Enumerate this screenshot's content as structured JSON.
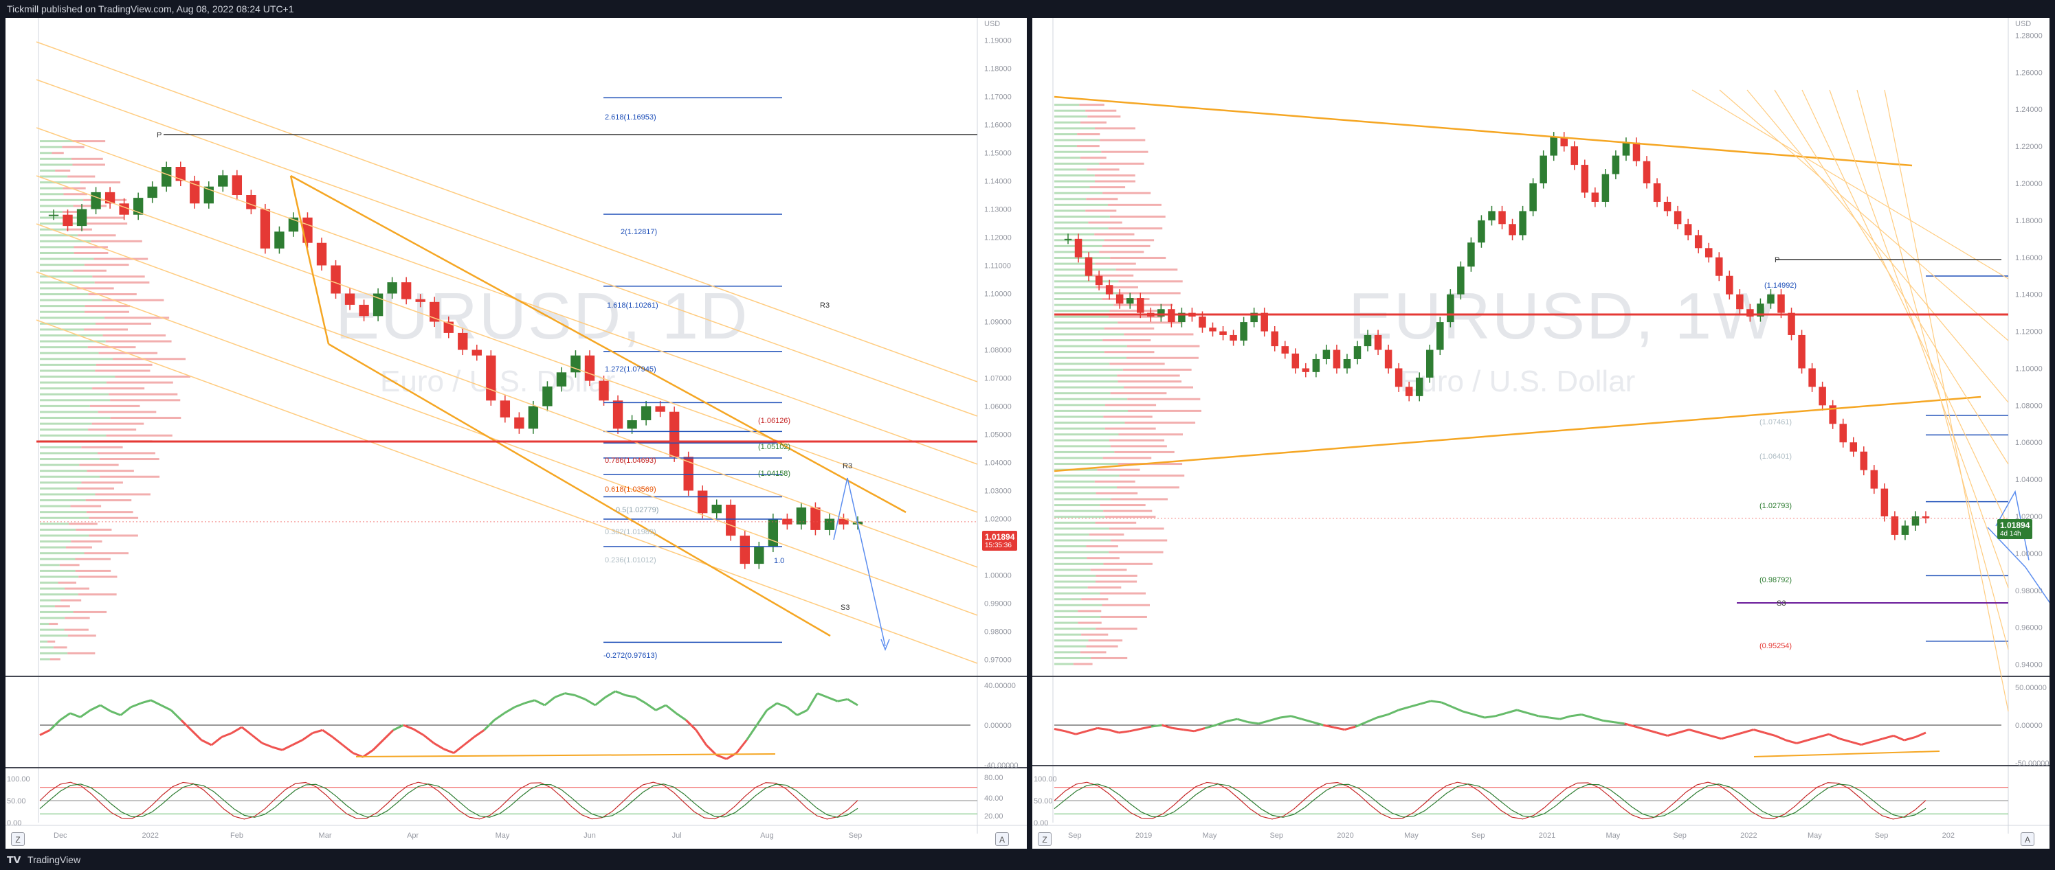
{
  "header": {
    "published_text": "Tickmill published on TradingView.com, Aug 08, 2022 08:24 UTC+1"
  },
  "footer": {
    "logo_text": "TradingView"
  },
  "colors": {
    "up": "#2e7d32",
    "down": "#e53935",
    "orange": "#f5a623",
    "blue": "#1e4fb8",
    "rsi_up": "#66bb6a",
    "rsi_down": "#ef5350"
  },
  "left_chart": {
    "watermark_ticker": "EURUSD, 1D",
    "watermark_desc": "Euro / U.S. Dollar",
    "currency_label": "USD",
    "price_tag": "1.01894",
    "price_tag_sub": "15:35:36",
    "price_axis": [
      "1.19000",
      "1.18000",
      "1.17000",
      "1.16000",
      "1.15000",
      "1.14000",
      "1.13000",
      "1.12000",
      "1.11000",
      "1.10000",
      "1.09000",
      "1.08000",
      "1.07000",
      "1.06000",
      "1.05000",
      "1.04000",
      "1.03000",
      "1.02000",
      "1.01000",
      "1.00000",
      "0.99000",
      "0.98000",
      "0.97000"
    ],
    "time_axis": [
      "Dec",
      "2022",
      "Feb",
      "Mar",
      "Apr",
      "May",
      "Jun",
      "Jul",
      "Aug",
      "Sep"
    ],
    "rsi_axis": [
      "40.00000",
      "0.00000",
      "-40.00000"
    ],
    "stoch_axis": [
      "100.00",
      "50.00",
      "0.00"
    ],
    "stoch_right_axis": [
      "80.00",
      "40.00",
      "20.00"
    ],
    "level_labels": {
      "p": "P",
      "r3": "R3",
      "r3b": "R3",
      "s3": "S3",
      "fib_2618": "2.618(1.16953)",
      "fib_2": "2(1.12817)",
      "fib_1618": "1.618(1.10261)",
      "fib_1272": "1.272(1.07945)",
      "fib_786": "0.786(1.04693)",
      "fib_618": "0.618(1.03569)",
      "fib_5": "0.5(1.02779)",
      "fib_382": "0.382(1.01989)",
      "fib_236": "0.236(1.01012)",
      "fib_neg272": "-0.272(0.97613)",
      "lvl_1": "(1.06126)",
      "lvl_2": "(1.05102)",
      "lvl_3": "(1.04158)",
      "lvl_4": "1.0"
    },
    "corner_left": "Z",
    "corner_right": "A"
  },
  "right_chart": {
    "watermark_ticker": "EURUSD, 1W",
    "watermark_desc": "Euro / U.S. Dollar",
    "currency_label": "USD",
    "price_tag": "1.01894",
    "price_tag_sub": "4d 14h",
    "price_axis": [
      "1.28000",
      "1.26000",
      "1.24000",
      "1.22000",
      "1.20000",
      "1.18000",
      "1.16000",
      "1.14000",
      "1.12000",
      "1.10000",
      "1.08000",
      "1.06000",
      "1.04000",
      "1.02000",
      "1.00000",
      "0.98000",
      "0.96000",
      "0.94000"
    ],
    "time_axis": [
      "Sep",
      "2019",
      "May",
      "Sep",
      "2020",
      "May",
      "Sep",
      "2021",
      "May",
      "Sep",
      "2022",
      "May",
      "Sep",
      "202"
    ],
    "rsi_axis": [
      "50.00000",
      "0.00000",
      "-50.00000"
    ],
    "stoch_axis": [
      "100.00",
      "50.00",
      "0.00"
    ],
    "level_labels": {
      "p": "P",
      "s3": "S3",
      "lvl_14992": "(1.14992)",
      "lvl_07461": "(1.07461)",
      "lvl_06401": "(1.06401)",
      "lvl_02793": "(1.02793)",
      "lvl_98792": "(0.98792)",
      "lvl_95254": "(0.95254)"
    },
    "corner_left": "Z",
    "corner_right": "A"
  },
  "chart_data": [
    {
      "type": "candlestick",
      "title": "EURUSD, 1D",
      "subtitle": "Euro / U.S. Dollar",
      "ylabel": "USD",
      "ylim": [
        0.965,
        1.195
      ],
      "x": [
        "Dec",
        "2022",
        "Feb",
        "Mar",
        "Apr",
        "May",
        "Jun",
        "Jul",
        "Aug",
        "Sep"
      ],
      "close_path": [
        1.128,
        1.124,
        1.13,
        1.136,
        1.132,
        1.128,
        1.134,
        1.138,
        1.145,
        1.14,
        1.132,
        1.138,
        1.142,
        1.135,
        1.13,
        1.116,
        1.122,
        1.127,
        1.118,
        1.11,
        1.1,
        1.096,
        1.092,
        1.1,
        1.104,
        1.098,
        1.097,
        1.09,
        1.086,
        1.08,
        1.078,
        1.062,
        1.056,
        1.052,
        1.06,
        1.067,
        1.072,
        1.078,
        1.069,
        1.062,
        1.052,
        1.055,
        1.06,
        1.058,
        1.042,
        1.03,
        1.022,
        1.025,
        1.014,
        1.004,
        1.01,
        1.02,
        1.018,
        1.024,
        1.016,
        1.02,
        1.018,
        1.019
      ],
      "last_price": 1.01894,
      "levels": [
        {
          "label": "2.618",
          "value": 1.16953
        },
        {
          "label": "2",
          "value": 1.12817
        },
        {
          "label": "1.618",
          "value": 1.10261
        },
        {
          "label": "1.272",
          "value": 1.07945
        },
        {
          "label": "0.786",
          "value": 1.04693
        },
        {
          "label": "0.618",
          "value": 1.03569
        },
        {
          "label": "0.5",
          "value": 1.02779
        },
        {
          "label": "0.382",
          "value": 1.01989
        },
        {
          "label": "0.236",
          "value": 1.01012
        },
        {
          "label": "-0.272",
          "value": 0.97613
        },
        {
          "label": "",
          "value": 1.06126
        },
        {
          "label": "",
          "value": 1.05102
        },
        {
          "label": "",
          "value": 1.04158
        }
      ],
      "rsi_ylim": [
        -40,
        40
      ],
      "rsi": [
        -10,
        -5,
        5,
        12,
        8,
        15,
        20,
        14,
        10,
        18,
        22,
        25,
        20,
        15,
        5,
        -5,
        -15,
        -20,
        -12,
        -8,
        -2,
        -10,
        -18,
        -22,
        -25,
        -20,
        -15,
        -8,
        -5,
        -12,
        -20,
        -28,
        -32,
        -25,
        -15,
        -5,
        0,
        -4,
        -10,
        -18,
        -24,
        -28,
        -20,
        -12,
        -5,
        5,
        12,
        18,
        22,
        25,
        20,
        28,
        32,
        30,
        26,
        20,
        28,
        34,
        30,
        28,
        22,
        15,
        20,
        12,
        5,
        -5,
        -20,
        -30,
        -34,
        -28,
        -15,
        0,
        15,
        22,
        18,
        10,
        15,
        32,
        28,
        24,
        26,
        20
      ]
    },
    {
      "type": "candlestick",
      "title": "EURUSD, 1W",
      "subtitle": "Euro / U.S. Dollar",
      "ylabel": "USD",
      "ylim": [
        0.935,
        1.285
      ],
      "x": [
        "Sep",
        "2019",
        "May",
        "Sep",
        "2020",
        "May",
        "Sep",
        "2021",
        "May",
        "Sep",
        "2022",
        "May",
        "Sep",
        "202"
      ],
      "close_path": [
        1.17,
        1.16,
        1.15,
        1.145,
        1.14,
        1.135,
        1.138,
        1.13,
        1.128,
        1.132,
        1.125,
        1.13,
        1.128,
        1.122,
        1.12,
        1.118,
        1.115,
        1.125,
        1.13,
        1.12,
        1.112,
        1.108,
        1.1,
        1.098,
        1.105,
        1.11,
        1.1,
        1.105,
        1.112,
        1.118,
        1.11,
        1.1,
        1.09,
        1.085,
        1.095,
        1.11,
        1.125,
        1.14,
        1.155,
        1.168,
        1.18,
        1.185,
        1.178,
        1.172,
        1.185,
        1.2,
        1.215,
        1.225,
        1.22,
        1.21,
        1.195,
        1.19,
        1.205,
        1.215,
        1.222,
        1.212,
        1.2,
        1.19,
        1.185,
        1.178,
        1.172,
        1.165,
        1.16,
        1.15,
        1.14,
        1.132,
        1.128,
        1.135,
        1.14,
        1.13,
        1.118,
        1.1,
        1.09,
        1.08,
        1.07,
        1.06,
        1.055,
        1.045,
        1.035,
        1.02,
        1.01,
        1.015,
        1.02,
        1.019
      ],
      "last_price": 1.01894,
      "levels": [
        {
          "label": "",
          "value": 1.14992
        },
        {
          "label": "",
          "value": 1.07461
        },
        {
          "label": "",
          "value": 1.06401
        },
        {
          "label": "",
          "value": 1.02793
        },
        {
          "label": "",
          "value": 0.98792
        },
        {
          "label": "",
          "value": 0.95254
        }
      ],
      "rsi_ylim": [
        -50,
        50
      ],
      "rsi": [
        -5,
        -8,
        -12,
        -8,
        -4,
        -6,
        -10,
        -8,
        -5,
        -2,
        0,
        -4,
        -6,
        -8,
        -4,
        0,
        5,
        8,
        4,
        2,
        6,
        10,
        12,
        8,
        4,
        0,
        -3,
        -6,
        -2,
        4,
        10,
        14,
        20,
        24,
        28,
        32,
        30,
        24,
        18,
        14,
        10,
        12,
        16,
        20,
        16,
        12,
        10,
        8,
        12,
        14,
        10,
        6,
        4,
        2,
        -2,
        -6,
        -10,
        -14,
        -10,
        -6,
        -10,
        -14,
        -18,
        -14,
        -10,
        -6,
        -10,
        -14,
        -20,
        -24,
        -20,
        -16,
        -12,
        -18,
        -22,
        -26,
        -22,
        -18,
        -14,
        -20,
        -16,
        -10
      ]
    }
  ]
}
